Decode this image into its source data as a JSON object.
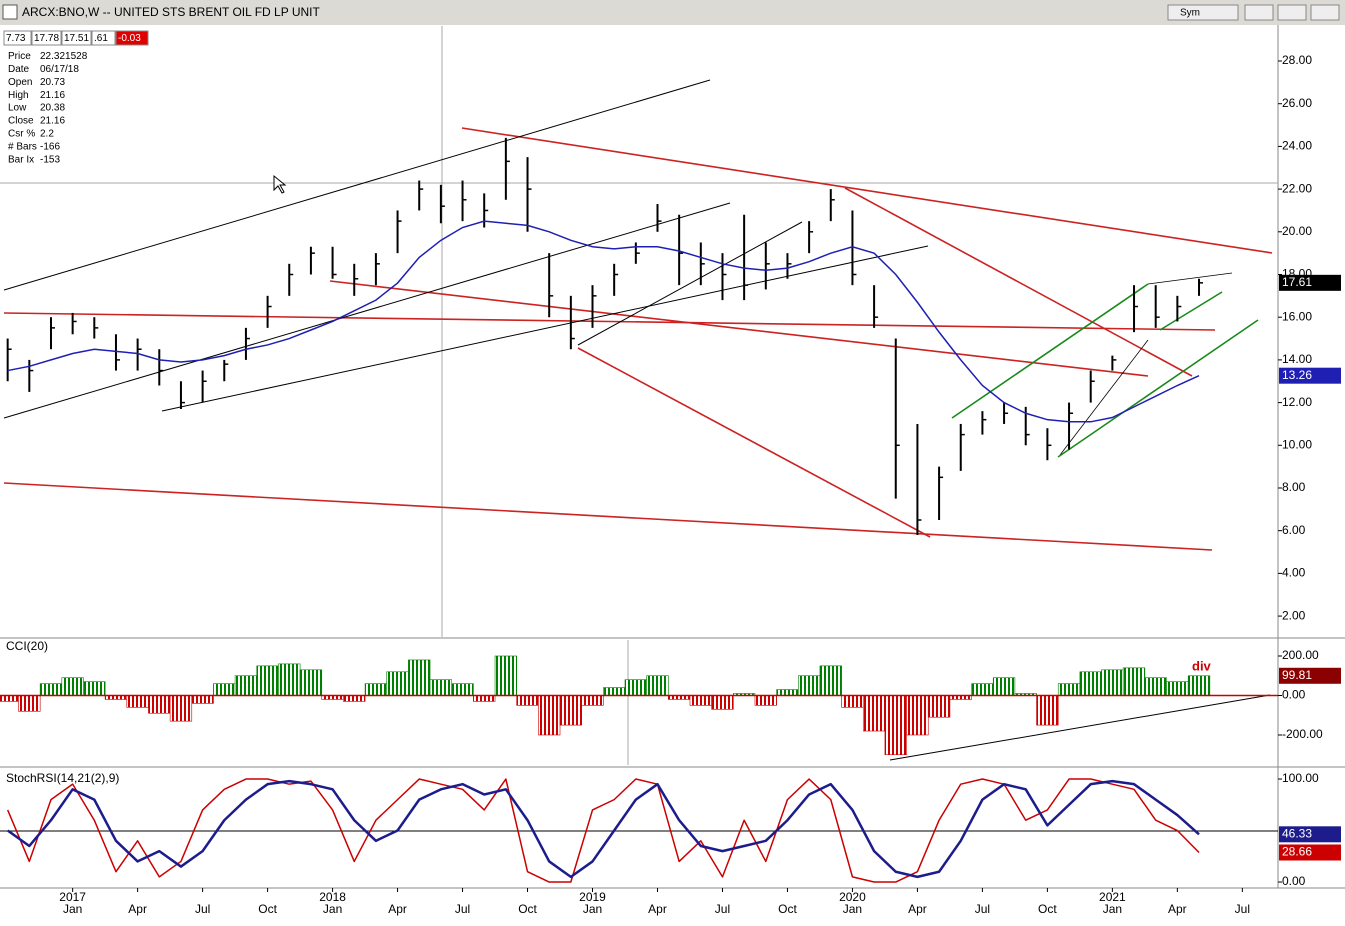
{
  "window": {
    "title": "ARCX:BNO,W -- UNITED STS BRENT OIL FD LP UNIT",
    "sym_button": "Sym"
  },
  "info": {
    "strip": [
      "7.73",
      "17.78",
      "17.51",
      ".61",
      "-0.03"
    ],
    "rows": [
      [
        "Price",
        "22.321528"
      ],
      [
        "Date",
        "06/17/18"
      ],
      [
        "Open",
        "20.73"
      ],
      [
        "High",
        "21.16"
      ],
      [
        "Low",
        "20.38"
      ],
      [
        "Close",
        "21.16"
      ],
      [
        "Csr %",
        "2.2"
      ],
      [
        "# Bars",
        "-166"
      ],
      [
        "Bar Ix",
        "-153"
      ]
    ]
  },
  "chart_data": [
    {
      "type": "ohlc",
      "x": [
        "2016-10",
        "2016-11",
        "2016-12",
        "2017-01",
        "2017-02",
        "2017-03",
        "2017-04",
        "2017-05",
        "2017-06",
        "2017-07",
        "2017-08",
        "2017-09",
        "2017-10",
        "2017-11",
        "2017-12",
        "2018-01",
        "2018-02",
        "2018-03",
        "2018-04",
        "2018-05",
        "2018-06",
        "2018-07",
        "2018-08",
        "2018-09",
        "2018-10",
        "2018-11",
        "2018-12",
        "2019-01",
        "2019-02",
        "2019-03",
        "2019-04",
        "2019-05",
        "2019-06",
        "2019-07",
        "2019-08",
        "2019-09",
        "2019-10",
        "2019-11",
        "2019-12",
        "2020-01",
        "2020-02",
        "2020-03",
        "2020-04",
        "2020-05",
        "2020-06",
        "2020-07",
        "2020-08",
        "2020-09",
        "2020-10",
        "2020-11",
        "2020-12",
        "2021-01",
        "2021-02",
        "2021-03",
        "2021-04",
        "2021-05"
      ],
      "high": [
        15,
        14,
        16,
        16.2,
        16,
        15.2,
        15,
        14.5,
        13,
        13.5,
        14,
        15.5,
        17,
        18.5,
        19.3,
        19.3,
        18.5,
        19,
        21,
        22.4,
        22.2,
        22.4,
        21.8,
        24.4,
        23.5,
        19,
        17,
        17.5,
        18.5,
        19.5,
        21.3,
        20.8,
        19.5,
        19,
        20.8,
        19.5,
        19,
        20.5,
        22,
        21,
        17.5,
        15,
        11,
        9,
        11,
        11.6,
        12,
        11.8,
        10.8,
        12,
        13.5,
        14.2,
        17.5,
        17.5,
        17,
        17.8
      ],
      "low": [
        13,
        12.5,
        14.5,
        15.2,
        15,
        13.5,
        13.5,
        12.8,
        11.7,
        12,
        13,
        14,
        15.5,
        17,
        18,
        17.8,
        17,
        17.5,
        19,
        21,
        20.4,
        20.5,
        20.2,
        21.5,
        20,
        16,
        14.5,
        15.5,
        17,
        18.5,
        20,
        17.5,
        17.5,
        16.8,
        16.8,
        17.3,
        17.8,
        19,
        20.5,
        17.5,
        15.5,
        7.5,
        5.8,
        6.5,
        8.8,
        10.5,
        11,
        10,
        9.3,
        9.8,
        12,
        13.5,
        15.3,
        15.5,
        15.8,
        17
      ],
      "close": [
        14.5,
        13.5,
        15.5,
        15.8,
        15.5,
        14,
        14.5,
        13.5,
        12,
        13,
        13.8,
        15,
        16.5,
        18,
        19,
        18,
        17.8,
        18.5,
        20.5,
        22,
        21.2,
        21.5,
        21,
        23.3,
        22,
        17,
        15,
        17,
        18,
        19,
        20.5,
        19,
        18.5,
        18,
        17.5,
        18.5,
        18.5,
        20,
        21.5,
        18,
        16,
        10,
        6.5,
        8.5,
        10.5,
        11.2,
        11.5,
        10.5,
        10,
        11.5,
        13,
        14,
        16.5,
        16,
        16.5,
        17.61
      ],
      "bar_color": "#000000",
      "ma": {
        "color": "#1f1fb4",
        "values": [
          13.5,
          13.7,
          14,
          14.3,
          14.5,
          14.4,
          14.3,
          14,
          13.9,
          14,
          14.2,
          14.5,
          14.7,
          15,
          15.4,
          15.8,
          16.3,
          16.8,
          17.6,
          18.8,
          19.6,
          20.2,
          20.5,
          20.4,
          20.3,
          20,
          19.6,
          19.3,
          19.2,
          19.3,
          19.3,
          19.1,
          18.8,
          18.5,
          18.3,
          18.2,
          18.3,
          18.6,
          19,
          19.3,
          19,
          18,
          16.7,
          15.3,
          14,
          12.8,
          12,
          11.5,
          11.2,
          11.1,
          11.1,
          11.3,
          11.8,
          12.3,
          12.8,
          13.26
        ]
      },
      "xlim": [
        "2016-09",
        "2021-08"
      ],
      "xticks": [
        {
          "value": "2017-01",
          "label": "Jan"
        },
        {
          "value": "2017-04",
          "label": "Apr"
        },
        {
          "value": "2017-07",
          "label": "Jul"
        },
        {
          "value": "2017-10",
          "label": "Oct"
        },
        {
          "value": "2018-01",
          "label": "Jan"
        },
        {
          "value": "2018-04",
          "label": "Apr"
        },
        {
          "value": "2018-07",
          "label": "Jul"
        },
        {
          "value": "2018-10",
          "label": "Oct"
        },
        {
          "value": "2019-01",
          "label": "Jan"
        },
        {
          "value": "2019-04",
          "label": "Apr"
        },
        {
          "value": "2019-07",
          "label": "Jul"
        },
        {
          "value": "2019-10",
          "label": "Oct"
        },
        {
          "value": "2020-01",
          "label": "Jan"
        },
        {
          "value": "2020-04",
          "label": "Apr"
        },
        {
          "value": "2020-07",
          "label": "Jul"
        },
        {
          "value": "2020-10",
          "label": "Oct"
        },
        {
          "value": "2021-01",
          "label": "Jan"
        },
        {
          "value": "2021-04",
          "label": "Apr"
        },
        {
          "value": "2021-07",
          "label": "Jul"
        }
      ],
      "year_ticks": [
        {
          "value": "2017-01",
          "label": "2017"
        },
        {
          "value": "2018-01",
          "label": "2018"
        },
        {
          "value": "2019-01",
          "label": "2019"
        },
        {
          "value": "2020-01",
          "label": "2020"
        },
        {
          "value": "2021-01",
          "label": "2021"
        }
      ],
      "ylim": [
        1.02,
        29.64
      ],
      "yticks": [
        {
          "value": 2,
          "label": "2.00"
        },
        {
          "value": 4,
          "label": "4.00"
        },
        {
          "value": 6,
          "label": "6.00"
        },
        {
          "value": 8,
          "label": "8.00"
        },
        {
          "value": 10,
          "label": "10.00"
        },
        {
          "value": 12,
          "label": "12.00"
        },
        {
          "value": 14,
          "label": "14.00"
        },
        {
          "value": 16,
          "label": "16.00"
        },
        {
          "value": 18,
          "label": "18.00"
        },
        {
          "value": 20,
          "label": "20.00"
        },
        {
          "value": 22,
          "label": "22.00"
        },
        {
          "value": 24,
          "label": "24.00"
        },
        {
          "value": 26,
          "label": "26.00"
        },
        {
          "value": 28,
          "label": "28.00"
        }
      ]
    },
    {
      "type": "histogram",
      "title": "CCI(20)",
      "annotation": "div",
      "values": [
        -30,
        -80,
        60,
        90,
        70,
        -20,
        -60,
        -90,
        -130,
        -40,
        60,
        100,
        150,
        160,
        130,
        -20,
        -30,
        60,
        120,
        180,
        80,
        60,
        -30,
        200,
        -50,
        -200,
        -150,
        -50,
        40,
        80,
        100,
        -20,
        -50,
        -70,
        10,
        -50,
        30,
        100,
        150,
        -60,
        -180,
        -300,
        -200,
        -110,
        -20,
        60,
        90,
        10,
        -150,
        60,
        120,
        130,
        140,
        90,
        70,
        99.81
      ],
      "value_labels_last": "99.81",
      "colors": {
        "positive": "#008000",
        "negative": "#cc0000"
      },
      "ylim": [
        -352,
        281
      ],
      "yticks": [
        {
          "value": -200,
          "label": "-200.00"
        },
        {
          "value": 0,
          "label": "0.00"
        },
        {
          "value": 200,
          "label": "200.00"
        }
      ]
    },
    {
      "type": "line",
      "title": "StochRSI(14,21(2),9)",
      "series": [
        {
          "color": "#cc0000",
          "values": [
            70,
            20,
            80,
            95,
            60,
            10,
            40,
            5,
            20,
            70,
            90,
            100,
            100,
            95,
            98,
            70,
            20,
            60,
            80,
            100,
            95,
            90,
            70,
            100,
            10,
            0,
            0,
            70,
            80,
            100,
            95,
            20,
            40,
            5,
            60,
            20,
            80,
            100,
            80,
            5,
            0,
            0,
            10,
            60,
            95,
            100,
            95,
            60,
            70,
            100,
            100,
            95,
            90,
            60,
            50,
            28.66
          ],
          "last_label": "28.66"
        },
        {
          "color": "#1c1c8c",
          "values": [
            50,
            35,
            60,
            90,
            80,
            40,
            20,
            30,
            15,
            30,
            60,
            80,
            95,
            98,
            95,
            90,
            60,
            40,
            50,
            80,
            90,
            95,
            85,
            90,
            60,
            20,
            5,
            20,
            50,
            80,
            95,
            60,
            35,
            30,
            35,
            40,
            60,
            85,
            95,
            70,
            30,
            10,
            5,
            10,
            40,
            80,
            95,
            90,
            55,
            75,
            95,
            98,
            95,
            80,
            65,
            46.33
          ],
          "last_label": "46.33"
        }
      ],
      "ylim": [
        -5.8,
        110.7
      ],
      "yticks": [
        {
          "value": 0,
          "label": "0.00"
        },
        {
          "value": 100,
          "label": "100.00"
        }
      ]
    }
  ]
}
